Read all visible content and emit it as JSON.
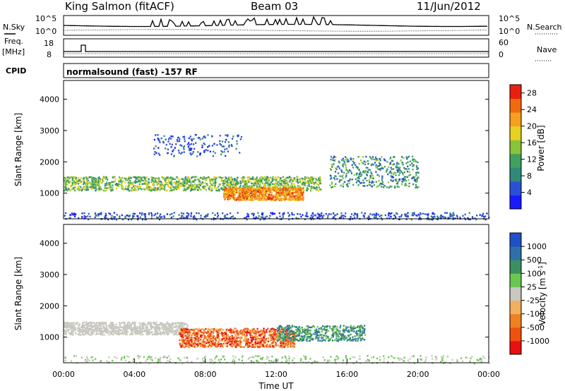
{
  "header": {
    "station": "King Salmon (fitACF)",
    "beam": "Beam 03",
    "date": "11/Jun/2012"
  },
  "noise_panel": {
    "left_label": "N.Sky",
    "right_label": "N.Search",
    "tick_top": "10^5",
    "tick_bottom": "10^0",
    "right_tick_top": "10^5",
    "right_tick_bottom": "10^0"
  },
  "freq_panel": {
    "left_label_1": "Freq.",
    "left_label_2": "[MHz]",
    "tick_top": "18",
    "tick_bottom": "8",
    "right_label": "Nave",
    "right_tick_top": "60",
    "right_tick_bottom": "0"
  },
  "cpid": {
    "label": "CPID",
    "value": "normalsound (fast) -157 RF"
  },
  "chart_data": [
    {
      "type": "heatmap",
      "quantity": "Power",
      "ylabel": "Slant Range [km]",
      "xlabel": "",
      "ylim": [
        180,
        4600
      ],
      "yticks": [
        "1000",
        "2000",
        "3000",
        "4000"
      ],
      "colorbar": {
        "label": "Power [dB]",
        "ticks": [
          "4",
          "8",
          "12",
          "16",
          "20",
          "24",
          "28"
        ],
        "range": [
          0,
          30
        ],
        "colors": [
          "#1a1aff",
          "#2b4fd6",
          "#2f8a7a",
          "#3fa060",
          "#88c33a",
          "#e8d020",
          "#f5a020",
          "#f26a10",
          "#e82010"
        ]
      },
      "time_range": [
        "00:00",
        "24:00"
      ],
      "features": [
        {
          "name": "main band",
          "time_h": [
            0,
            14.5
          ],
          "range_km": [
            1100,
            1550
          ],
          "power_db": [
            8,
            20
          ]
        },
        {
          "name": "strong echo",
          "time_h": [
            9,
            13.5
          ],
          "range_km": [
            800,
            1200
          ],
          "power_db": [
            18,
            28
          ]
        },
        {
          "name": "upper scatter",
          "time_h": [
            5,
            10
          ],
          "range_km": [
            2200,
            2900
          ],
          "power_db": [
            2,
            8
          ]
        },
        {
          "name": "late echoes",
          "time_h": [
            15,
            20
          ],
          "range_km": [
            1200,
            2200
          ],
          "power_db": [
            4,
            16
          ]
        },
        {
          "name": "ground band",
          "time_h": [
            0,
            24
          ],
          "range_km": [
            180,
            400
          ],
          "power_db": [
            2,
            8
          ]
        }
      ]
    },
    {
      "type": "heatmap",
      "quantity": "Velocity",
      "ylabel": "Slant Range [km]",
      "xlabel": "Time UT",
      "ylim": [
        180,
        4600
      ],
      "yticks": [
        "1000",
        "2000",
        "3000",
        "4000"
      ],
      "xticks": [
        "00:00",
        "04:00",
        "08:00",
        "12:00",
        "16:00",
        "20:00",
        "00:00"
      ],
      "colorbar": {
        "label": "Velocity [m s-1]",
        "ticks": [
          "1000",
          "500",
          "100",
          "25",
          "-25",
          "-100",
          "-500",
          "-1000"
        ],
        "colors": [
          "#2050c8",
          "#3070a8",
          "#3a9060",
          "#6ac850",
          "#c8c8c0",
          "#f0b060",
          "#f08020",
          "#f05010",
          "#e81010"
        ]
      },
      "features": [
        {
          "name": "ground scatter",
          "time_h": [
            0,
            7
          ],
          "range_km": [
            1100,
            1500
          ],
          "velocity": "-25 to 25"
        },
        {
          "name": "negative flow",
          "time_h": [
            6.5,
            13
          ],
          "range_km": [
            700,
            1300
          ],
          "velocity": "-100 to -1000"
        },
        {
          "name": "positive flow",
          "time_h": [
            12,
            17
          ],
          "range_km": [
            900,
            1400
          ],
          "velocity": "100 to 500"
        }
      ]
    }
  ]
}
